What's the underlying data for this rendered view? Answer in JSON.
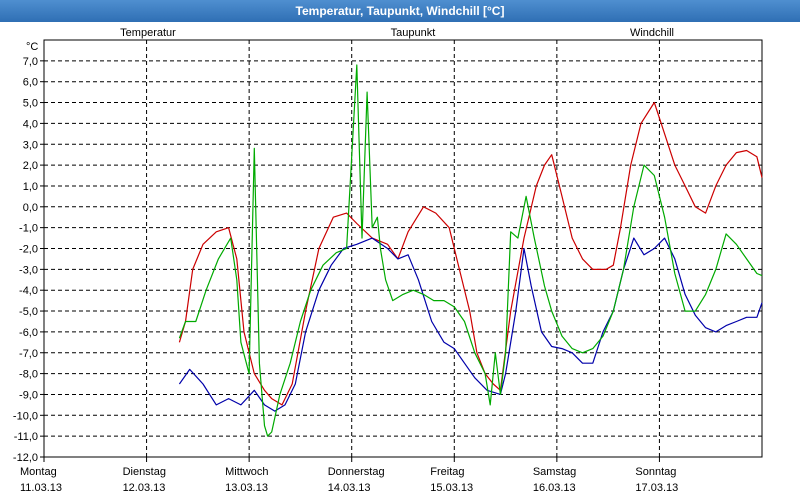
{
  "window": {
    "title": "Temperatur, Taupunkt, Windchill [°C]"
  },
  "chart_data": {
    "type": "line",
    "title": "Temperatur, Taupunkt, Windchill [°C]",
    "ylabel": "°C",
    "ylim": [
      -12,
      8
    ],
    "xlim": [
      0,
      7
    ],
    "y_ticks": [
      "7,0",
      "6,0",
      "5,0",
      "4,0",
      "3,0",
      "2,0",
      "1,0",
      "0,0",
      "-1,0",
      "-2,0",
      "-3,0",
      "-4,0",
      "-5,0",
      "-6,0",
      "-7,0",
      "-8,0",
      "-9,0",
      "-10,0",
      "-11,0",
      "-12,0"
    ],
    "x_ticks": [
      {
        "day": "Montag",
        "date": "11.03.13"
      },
      {
        "day": "Dienstag",
        "date": "12.03.13"
      },
      {
        "day": "Mittwoch",
        "date": "13.03.13"
      },
      {
        "day": "Donnerstag",
        "date": "14.03.13"
      },
      {
        "day": "Freitag",
        "date": "15.03.13"
      },
      {
        "day": "Samstag",
        "date": "16.03.13"
      },
      {
        "day": "Sonntag",
        "date": "17.03.13"
      }
    ],
    "grid": true,
    "series": [
      {
        "name": "Temperatur",
        "color": "#cc0000",
        "x": [
          1.32,
          1.38,
          1.45,
          1.55,
          1.68,
          1.8,
          1.88,
          1.95,
          2.05,
          2.15,
          2.22,
          2.32,
          2.42,
          2.55,
          2.68,
          2.82,
          2.95,
          3.05,
          3.2,
          3.35,
          3.45,
          3.55,
          3.7,
          3.82,
          3.95,
          4.05,
          4.15,
          4.22,
          4.3,
          4.38,
          4.45,
          4.55,
          4.68,
          4.8,
          4.88,
          4.95,
          5.05,
          5.15,
          5.25,
          5.35,
          5.48,
          5.55,
          5.62,
          5.72,
          5.82,
          5.95,
          6.05,
          6.15,
          6.25,
          6.35,
          6.45,
          6.55,
          6.65,
          6.75,
          6.85,
          6.95,
          7.0
        ],
        "y": [
          -6.5,
          -5.5,
          -3,
          -1.8,
          -1.2,
          -1,
          -2.5,
          -6,
          -8,
          -8.8,
          -9.2,
          -9.5,
          -8.5,
          -5,
          -2,
          -0.5,
          -0.3,
          -0.8,
          -1.5,
          -1.8,
          -2.5,
          -1.2,
          0,
          -0.3,
          -1,
          -3,
          -5,
          -7,
          -8,
          -8.5,
          -8.8,
          -5,
          -1.5,
          1,
          2,
          2.5,
          0.5,
          -1.5,
          -2.5,
          -3,
          -3,
          -2.8,
          -1,
          2,
          4,
          5,
          3.5,
          2,
          1,
          0,
          -0.3,
          1,
          2,
          2.6,
          2.7,
          2.4,
          1.4
        ]
      },
      {
        "name": "Taupunkt",
        "color": "#0000aa",
        "x": [
          1.32,
          1.42,
          1.55,
          1.68,
          1.8,
          1.92,
          2.05,
          2.15,
          2.25,
          2.35,
          2.45,
          2.55,
          2.68,
          2.8,
          2.92,
          3.05,
          3.2,
          3.35,
          3.45,
          3.55,
          3.65,
          3.78,
          3.9,
          4.0,
          4.1,
          4.2,
          4.32,
          4.45,
          4.5,
          4.6,
          4.68,
          4.75,
          4.85,
          4.95,
          5.05,
          5.15,
          5.25,
          5.35,
          5.45,
          5.55,
          5.65,
          5.75,
          5.85,
          5.95,
          6.05,
          6.15,
          6.25,
          6.35,
          6.45,
          6.55,
          6.65,
          6.75,
          6.85,
          6.95,
          7.0
        ],
        "y": [
          -8.5,
          -7.8,
          -8.5,
          -9.5,
          -9.2,
          -9.5,
          -8.8,
          -9.5,
          -9.8,
          -9.5,
          -8.5,
          -6,
          -4,
          -2.8,
          -2,
          -1.8,
          -1.5,
          -2,
          -2.5,
          -2.3,
          -3.5,
          -5.5,
          -6.5,
          -6.8,
          -7.5,
          -8.2,
          -8.8,
          -9,
          -8,
          -5,
          -2,
          -3.8,
          -6,
          -6.7,
          -6.8,
          -7,
          -7.5,
          -7.5,
          -6,
          -5,
          -3,
          -1.5,
          -2.3,
          -2,
          -1.5,
          -2.5,
          -4.2,
          -5.2,
          -5.8,
          -6,
          -5.7,
          -5.5,
          -5.3,
          -5.3,
          -4.6
        ]
      },
      {
        "name": "Windchill",
        "color": "#00aa00",
        "x": [
          1.32,
          1.38,
          1.48,
          1.58,
          1.7,
          1.82,
          1.88,
          1.92,
          2.0,
          2.05,
          2.1,
          2.15,
          2.18,
          2.22,
          2.3,
          2.4,
          2.5,
          2.6,
          2.72,
          2.85,
          2.95,
          3.05,
          3.1,
          3.15,
          3.2,
          3.25,
          3.28,
          3.33,
          3.4,
          3.5,
          3.6,
          3.7,
          3.8,
          3.9,
          4.0,
          4.1,
          4.2,
          4.3,
          4.35,
          4.4,
          4.45,
          4.5,
          4.55,
          4.62,
          4.7,
          4.78,
          4.88,
          4.95,
          5.05,
          5.15,
          5.25,
          5.35,
          5.45,
          5.55,
          5.65,
          5.75,
          5.85,
          5.95,
          6.05,
          6.15,
          6.25,
          6.35,
          6.45,
          6.55,
          6.65,
          6.75,
          6.85,
          6.95,
          7.0
        ],
        "y": [
          -6.3,
          -5.5,
          -5.5,
          -4,
          -2.5,
          -1.5,
          -3.5,
          -6.5,
          -8,
          2.8,
          -7.5,
          -10.5,
          -11,
          -10.8,
          -9,
          -7.5,
          -5.5,
          -4,
          -2.8,
          -2.2,
          -2,
          6.8,
          -1.5,
          5.5,
          -1,
          -0.5,
          -2,
          -3.5,
          -4.5,
          -4.2,
          -4,
          -4.2,
          -4.5,
          -4.5,
          -4.8,
          -5.5,
          -7,
          -8,
          -9.5,
          -7,
          -9,
          -7,
          -1.2,
          -1.5,
          0.5,
          -1.5,
          -3.8,
          -5,
          -6.2,
          -6.8,
          -7,
          -6.8,
          -6.2,
          -5,
          -3,
          0,
          2,
          1.5,
          -0.5,
          -3.2,
          -5,
          -5,
          -4.2,
          -3,
          -1.3,
          -1.8,
          -2.5,
          -3.2,
          -3.3
        ]
      }
    ]
  }
}
